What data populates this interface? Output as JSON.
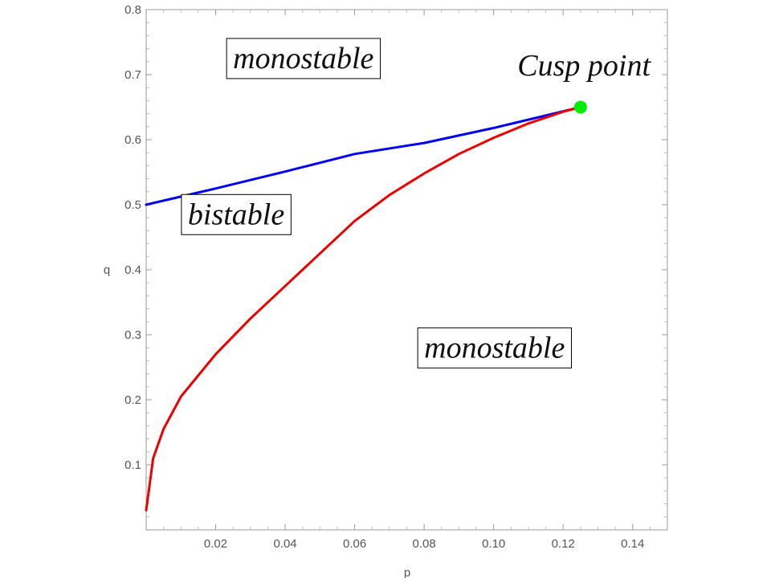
{
  "chart_data": {
    "type": "line",
    "xlabel": "p",
    "ylabel": "q",
    "xlim": [
      0,
      0.15
    ],
    "ylim": [
      0,
      0.8
    ],
    "x_ticks": [
      "0.02",
      "0.04",
      "0.06",
      "0.08",
      "0.10",
      "0.12",
      "0.14"
    ],
    "x_tick_values": [
      0.02,
      0.04,
      0.06,
      0.08,
      0.1,
      0.12,
      0.14
    ],
    "y_ticks": [
      "0.1",
      "0.2",
      "0.3",
      "0.4",
      "0.5",
      "0.6",
      "0.7",
      "0.8"
    ],
    "y_tick_values": [
      0.1,
      0.2,
      0.3,
      0.4,
      0.5,
      0.6,
      0.7,
      0.8
    ],
    "grid": false,
    "series": [
      {
        "color": "#0000ee",
        "points": [
          [
            0,
            0.5
          ],
          [
            0.02,
            0.525
          ],
          [
            0.04,
            0.551
          ],
          [
            0.06,
            0.578
          ],
          [
            0.08,
            0.595
          ],
          [
            0.1,
            0.618
          ],
          [
            0.125,
            0.65
          ]
        ]
      },
      {
        "color": "#ee0000",
        "points": [
          [
            0,
            0.03
          ],
          [
            0.002,
            0.11
          ],
          [
            0.005,
            0.155
          ],
          [
            0.01,
            0.205
          ],
          [
            0.02,
            0.27
          ],
          [
            0.03,
            0.325
          ],
          [
            0.04,
            0.375
          ],
          [
            0.05,
            0.425
          ],
          [
            0.06,
            0.475
          ],
          [
            0.07,
            0.515
          ],
          [
            0.08,
            0.548
          ],
          [
            0.09,
            0.578
          ],
          [
            0.1,
            0.603
          ],
          [
            0.11,
            0.625
          ],
          [
            0.12,
            0.643
          ],
          [
            0.125,
            0.65
          ]
        ]
      }
    ],
    "cusp_point": {
      "p": 0.125,
      "q": 0.65,
      "color": "#00ee00"
    },
    "annotations": {
      "region_top": {
        "text": "monostable",
        "p": 0.025,
        "q": 0.71
      },
      "region_middle": {
        "text": "bistable",
        "p": 0.012,
        "q": 0.47
      },
      "region_bottom": {
        "text": "monostable",
        "p": 0.08,
        "q": 0.265
      },
      "cusp": {
        "text": "Cusp point",
        "p": 0.126,
        "q": 0.72
      }
    }
  }
}
